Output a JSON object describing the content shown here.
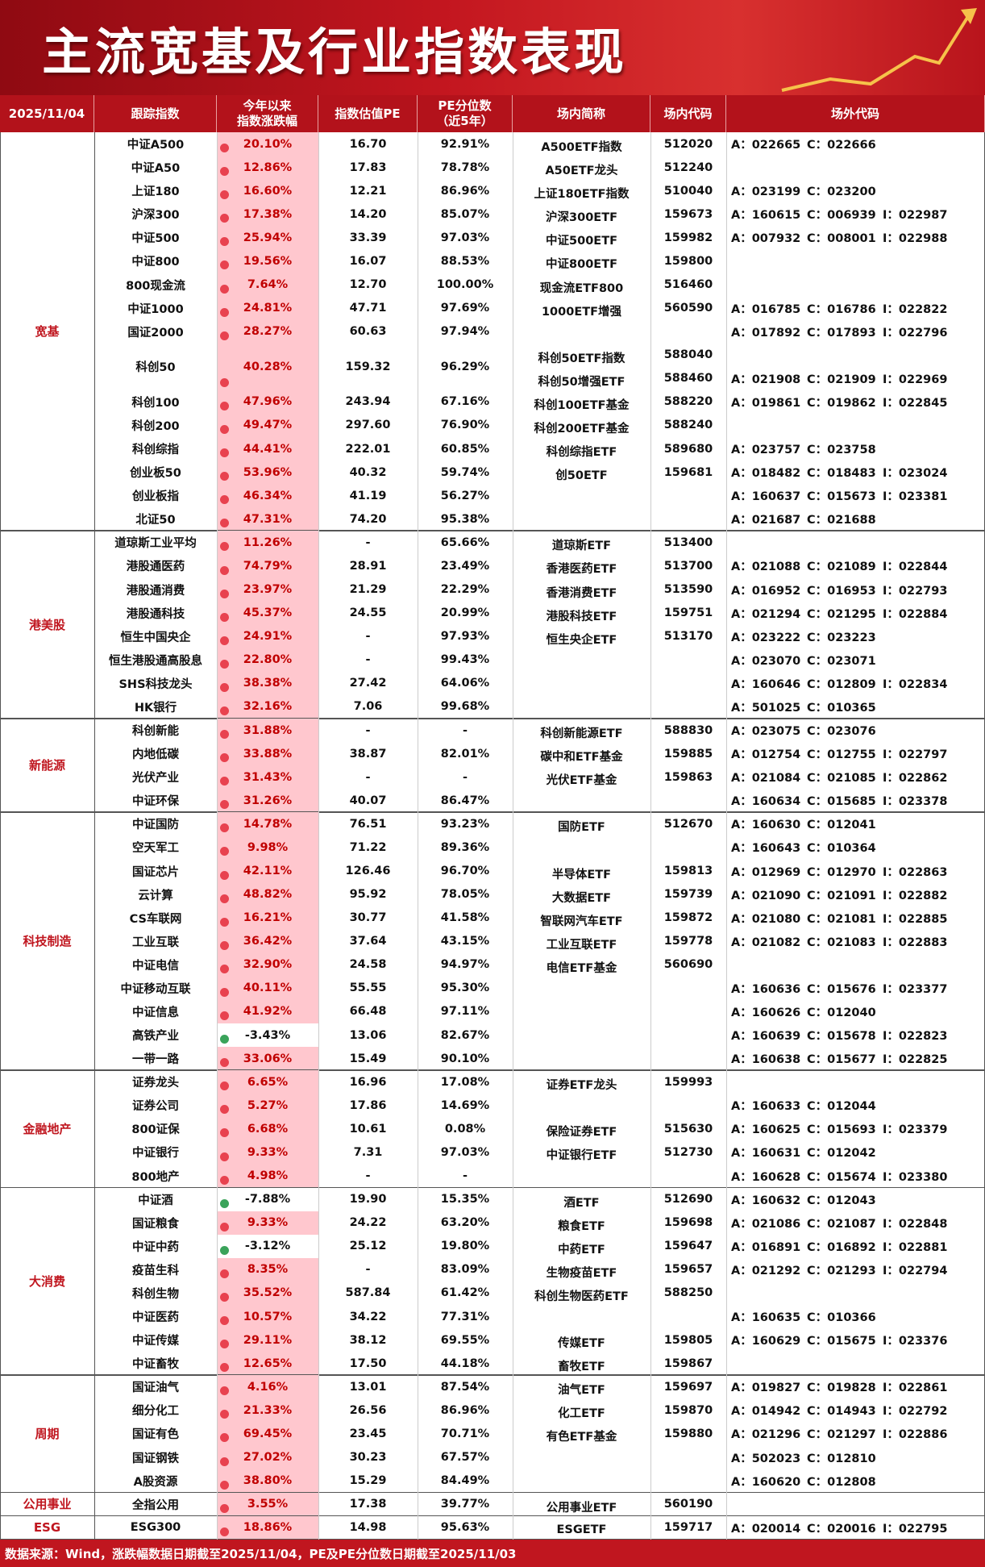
{
  "header": {
    "title": "主流宽基及行业指数表现"
  },
  "table": {
    "date": "2025/11/04",
    "columns": [
      "跟踪指数",
      [
        "今年以来",
        "指数涨跌幅"
      ],
      "指数估值PE",
      [
        "PE分位数",
        "（近5年）"
      ],
      "场内简称",
      "场内代码",
      "场外代码"
    ],
    "groups": [
      {
        "name": "宽基",
        "rows": [
          [
            "中证A500",
            "20.10%",
            "16.70",
            "92.91%",
            "A500ETF指数",
            "512020",
            [
              "A：022665",
              "C：022666"
            ]
          ],
          [
            "中证A50",
            "12.86%",
            "17.83",
            "78.78%",
            "A50ETF龙头",
            "512240",
            null
          ],
          [
            "上证180",
            "16.60%",
            "12.21",
            "86.96%",
            "上证180ETF指数",
            "510040",
            [
              "A：023199",
              "C：023200"
            ]
          ],
          [
            "沪深300",
            "17.38%",
            "14.20",
            "85.07%",
            "沪深300ETF",
            "159673",
            [
              "A：160615",
              "C：006939",
              "I：022987"
            ]
          ],
          [
            "中证500",
            "25.94%",
            "33.39",
            "97.03%",
            "中证500ETF",
            "159982",
            [
              "A：007932",
              "C：008001",
              "I：022988"
            ]
          ],
          [
            "中证800",
            "19.56%",
            "16.07",
            "88.53%",
            "中证800ETF",
            "159800",
            null
          ],
          [
            "800现金流",
            "7.64%",
            "12.70",
            "100.00%",
            "现金流ETF800",
            "516460",
            null
          ],
          [
            "中证1000",
            "24.81%",
            "47.71",
            "97.69%",
            "1000ETF增强",
            "560590",
            [
              "A：016785",
              "C：016786",
              "I：022822"
            ]
          ],
          [
            "国证2000",
            "28.27%",
            "60.63",
            "97.94%",
            null,
            null,
            [
              "A：017892",
              "C：017893",
              "I：022796"
            ]
          ],
          [
            "科创50",
            "40.28%",
            "159.32",
            "96.29%",
            [
              "科创50ETF指数",
              "科创50增强ETF"
            ],
            [
              "588040",
              "588460"
            ],
            [
              "A：021908",
              "C：021909",
              "I：022969"
            ]
          ],
          [
            "科创100",
            "47.96%",
            "243.94",
            "67.16%",
            "科创100ETF基金",
            "588220",
            [
              "A：019861",
              "C：019862",
              "I：022845"
            ]
          ],
          [
            "科创200",
            "49.47%",
            "297.60",
            "76.90%",
            "科创200ETF基金",
            "588240",
            null
          ],
          [
            "科创综指",
            "44.41%",
            "222.01",
            "60.85%",
            "科创综指ETF",
            "589680",
            [
              "A：023757",
              "C：023758"
            ]
          ],
          [
            "创业板50",
            "53.96%",
            "40.32",
            "59.74%",
            "创50ETF",
            "159681",
            [
              "A：018482",
              "C：018483",
              "I：023024"
            ]
          ],
          [
            "创业板指",
            "46.34%",
            "41.19",
            "56.27%",
            null,
            null,
            [
              "A：160637",
              "C：015673",
              "I：023381"
            ]
          ],
          [
            "北证50",
            "47.31%",
            "74.20",
            "95.38%",
            null,
            null,
            [
              "A：021687",
              "C：021688"
            ]
          ]
        ]
      },
      {
        "name": "港美股",
        "rows": [
          [
            "道琼斯工业平均",
            "11.26%",
            "-",
            "65.66%",
            "道琼斯ETF",
            "513400",
            null
          ],
          [
            "港股通医药",
            "74.79%",
            "28.91",
            "23.49%",
            "香港医药ETF",
            "513700",
            [
              "A：021088",
              "C：021089",
              "I：022844"
            ]
          ],
          [
            "港股通消费",
            "23.97%",
            "21.29",
            "22.29%",
            "香港消费ETF",
            "513590",
            [
              "A：016952",
              "C：016953",
              "I：022793"
            ]
          ],
          [
            "港股通科技",
            "45.37%",
            "24.55",
            "20.99%",
            "港股科技ETF",
            "159751",
            [
              "A：021294",
              "C：021295",
              "I：022884"
            ]
          ],
          [
            "恒生中国央企",
            "24.91%",
            "-",
            "97.93%",
            "恒生央企ETF",
            "513170",
            [
              "A：023222",
              "C：023223"
            ]
          ],
          [
            "恒生港股通高股息",
            "22.80%",
            "-",
            "99.43%",
            null,
            null,
            [
              "A：023070",
              "C：023071"
            ]
          ],
          [
            "SHS科技龙头",
            "38.38%",
            "27.42",
            "64.06%",
            null,
            null,
            [
              "A：160646",
              "C：012809",
              "I：022834"
            ]
          ],
          [
            "HK银行",
            "32.16%",
            "7.06",
            "99.68%",
            null,
            null,
            [
              "A：501025",
              "C：010365"
            ]
          ]
        ]
      },
      {
        "name": "新能源",
        "rows": [
          [
            "科创新能",
            "31.88%",
            "-",
            "-",
            "科创新能源ETF",
            "588830",
            [
              "A：023075",
              "C：023076"
            ]
          ],
          [
            "内地低碳",
            "33.88%",
            "38.87",
            "82.01%",
            "碳中和ETF基金",
            "159885",
            [
              "A：012754",
              "C：012755",
              "I：022797"
            ]
          ],
          [
            "光伏产业",
            "31.43%",
            "-",
            "-",
            "光伏ETF基金",
            "159863",
            [
              "A：021084",
              "C：021085",
              "I：022862"
            ]
          ],
          [
            "中证环保",
            "31.26%",
            "40.07",
            "86.47%",
            null,
            null,
            [
              "A：160634",
              "C：015685",
              "I：023378"
            ]
          ]
        ]
      },
      {
        "name": "科技制造",
        "rows": [
          [
            "中证国防",
            "14.78%",
            "76.51",
            "93.23%",
            "国防ETF",
            "512670",
            [
              "A：160630",
              "C：012041"
            ]
          ],
          [
            "空天军工",
            "9.98%",
            "71.22",
            "89.36%",
            null,
            null,
            [
              "A：160643",
              "C：010364"
            ]
          ],
          [
            "国证芯片",
            "42.11%",
            "126.46",
            "96.70%",
            "半导体ETF",
            "159813",
            [
              "A：012969",
              "C：012970",
              "I：022863"
            ]
          ],
          [
            "云计算",
            "48.82%",
            "95.92",
            "78.05%",
            "大数据ETF",
            "159739",
            [
              "A：021090",
              "C：021091",
              "I：022882"
            ]
          ],
          [
            "CS车联网",
            "16.21%",
            "30.77",
            "41.58%",
            "智联网汽车ETF",
            "159872",
            [
              "A：021080",
              "C：021081",
              "I：022885"
            ]
          ],
          [
            "工业互联",
            "36.42%",
            "37.64",
            "43.15%",
            "工业互联ETF",
            "159778",
            [
              "A：021082",
              "C：021083",
              "I：022883"
            ]
          ],
          [
            "中证电信",
            "32.90%",
            "24.58",
            "94.97%",
            "电信ETF基金",
            "560690",
            null
          ],
          [
            "中证移动互联",
            "40.11%",
            "55.55",
            "95.30%",
            null,
            null,
            [
              "A：160636",
              "C：015676",
              "I：023377"
            ]
          ],
          [
            "中证信息",
            "41.92%",
            "66.48",
            "97.11%",
            null,
            null,
            [
              "A：160626",
              "C：012040"
            ]
          ],
          [
            "高铁产业",
            "-3.43%",
            "13.06",
            "82.67%",
            null,
            null,
            [
              "A：160639",
              "C：015678",
              "I：022823"
            ]
          ],
          [
            "一带一路",
            "33.06%",
            "15.49",
            "90.10%",
            null,
            null,
            [
              "A：160638",
              "C：015677",
              "I：022825"
            ]
          ]
        ]
      },
      {
        "name": "金融地产",
        "rows": [
          [
            "证券龙头",
            "6.65%",
            "16.96",
            "17.08%",
            "证券ETF龙头",
            "159993",
            null
          ],
          [
            "证券公司",
            "5.27%",
            "17.86",
            "14.69%",
            null,
            null,
            [
              "A：160633",
              "C：012044"
            ]
          ],
          [
            "800证保",
            "6.68%",
            "10.61",
            "0.08%",
            "保险证券ETF",
            "515630",
            [
              "A：160625",
              "C：015693",
              "I：023379"
            ]
          ],
          [
            "中证银行",
            "9.33%",
            "7.31",
            "97.03%",
            "中证银行ETF",
            "512730",
            [
              "A：160631",
              "C：012042"
            ]
          ],
          [
            "800地产",
            "4.98%",
            "-",
            "-",
            null,
            null,
            [
              "A：160628",
              "C：015674",
              "I：023380"
            ]
          ]
        ]
      },
      {
        "name": "大消费",
        "rows": [
          [
            "中证酒",
            "-7.88%",
            "19.90",
            "15.35%",
            "酒ETF",
            "512690",
            [
              "A：160632",
              "C：012043"
            ]
          ],
          [
            "国证粮食",
            "9.33%",
            "24.22",
            "63.20%",
            "粮食ETF",
            "159698",
            [
              "A：021086",
              "C：021087",
              "I：022848"
            ]
          ],
          [
            "中证中药",
            "-3.12%",
            "25.12",
            "19.80%",
            "中药ETF",
            "159647",
            [
              "A：016891",
              "C：016892",
              "I：022881"
            ]
          ],
          [
            "疫苗生科",
            "8.35%",
            "-",
            "83.09%",
            "生物疫苗ETF",
            "159657",
            [
              "A：021292",
              "C：021293",
              "I：022794"
            ]
          ],
          [
            "科创生物",
            "35.52%",
            "587.84",
            "61.42%",
            "科创生物医药ETF",
            "588250",
            null
          ],
          [
            "中证医药",
            "10.57%",
            "34.22",
            "77.31%",
            null,
            null,
            [
              "A：160635",
              "C：010366"
            ]
          ],
          [
            "中证传媒",
            "29.11%",
            "38.12",
            "69.55%",
            "传媒ETF",
            "159805",
            [
              "A：160629",
              "C：015675",
              "I：023376"
            ]
          ],
          [
            "中证畜牧",
            "12.65%",
            "17.50",
            "44.18%",
            "畜牧ETF",
            "159867",
            null
          ]
        ]
      },
      {
        "name": "周期",
        "rows": [
          [
            "国证油气",
            "4.16%",
            "13.01",
            "87.54%",
            "油气ETF",
            "159697",
            [
              "A：019827",
              "C：019828",
              "I：022861"
            ]
          ],
          [
            "细分化工",
            "21.33%",
            "26.56",
            "86.96%",
            "化工ETF",
            "159870",
            [
              "A：014942",
              "C：014943",
              "I：022792"
            ]
          ],
          [
            "国证有色",
            "69.45%",
            "23.45",
            "70.71%",
            "有色ETF基金",
            "159880",
            [
              "A：021296",
              "C：021297",
              "I：022886"
            ]
          ],
          [
            "国证钢铁",
            "27.02%",
            "30.23",
            "67.57%",
            null,
            null,
            [
              "A：502023",
              "C：012810"
            ]
          ],
          [
            "A股资源",
            "38.80%",
            "15.29",
            "84.49%",
            null,
            null,
            [
              "A：160620",
              "C：012808"
            ]
          ]
        ]
      },
      {
        "name": "公用事业",
        "rows": [
          [
            "全指公用",
            "3.55%",
            "17.38",
            "39.77%",
            "公用事业ETF",
            "560190",
            null
          ]
        ]
      },
      {
        "name": "ESG",
        "rows": [
          [
            "ESG300",
            "18.86%",
            "14.98",
            "95.63%",
            "ESGETF",
            "159717",
            [
              "A：020014",
              "C：020016",
              "I：022795"
            ]
          ]
        ]
      }
    ]
  },
  "footer": {
    "source": "数据来源：Wind，涨跌幅数据日期截至2025/11/04，PE及PE分位数日期截至2025/11/03"
  }
}
